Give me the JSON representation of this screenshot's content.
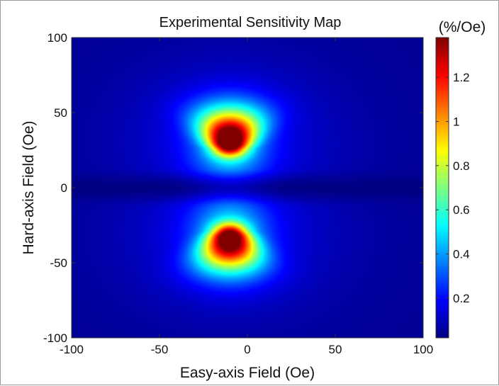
{
  "chart_data": {
    "type": "heatmap",
    "title": "Experimental Sensitivity Map",
    "xlabel": "Easy-axis Field (Oe)",
    "ylabel": "Hard-axis Field (Oe)",
    "xlim": [
      -100,
      100
    ],
    "ylim": [
      -100,
      100
    ],
    "x_ticks": [
      -100,
      -50,
      0,
      50,
      100
    ],
    "y_ticks": [
      -100,
      -50,
      0,
      50,
      100
    ],
    "colorbar": {
      "unit": "(%/Oe)",
      "range": [
        0.02,
        1.38
      ],
      "ticks": [
        0.2,
        0.4,
        0.6,
        0.8,
        1,
        1.2
      ],
      "colormap": "jet"
    },
    "hotspots": [
      {
        "x": -10,
        "y": 30,
        "peak": 1.38
      },
      {
        "x": -10,
        "y": -33,
        "peak": 1.3
      }
    ],
    "background_value": 0.05,
    "grid": false
  },
  "colors": {
    "jet_low": "#00008f",
    "jet_mid": "#80ff80",
    "jet_high": "#800000"
  }
}
